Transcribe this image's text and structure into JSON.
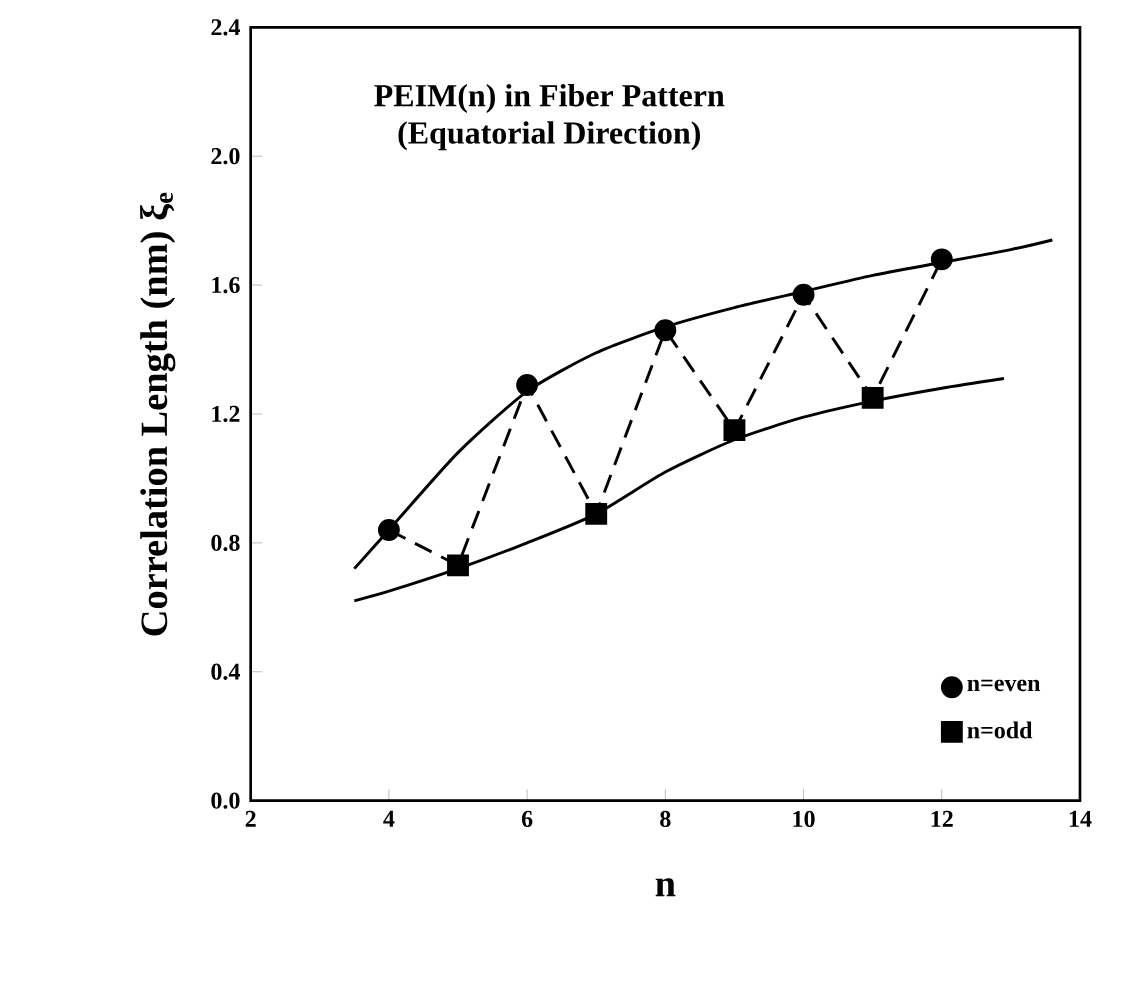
{
  "chart_data": {
    "type": "scatter",
    "title": "PEIM(n) in Fiber Pattern",
    "subtitle": "(Equatorial Direction)",
    "xlabel": "n",
    "ylabel": "Correlation Length (nm)  ξ$_{e}$",
    "xlim": [
      2,
      14
    ],
    "xticks": [
      2,
      4,
      6,
      8,
      10,
      12,
      14
    ],
    "ylim": [
      0,
      2.4
    ],
    "yticks": [
      {
        "value": 0,
        "label": "0.0"
      },
      0.4,
      0.8,
      1.2,
      1.6,
      {
        "value": 2,
        "label": "2.0"
      },
      2.4
    ],
    "legend": "bottom right",
    "grid": false,
    "series": [
      {
        "type": "line",
        "color": "#000000",
        "line_style": "solid",
        "marker": "none",
        "x": [
          3.5,
          4,
          5,
          6,
          7,
          8,
          9,
          10,
          11,
          12,
          13,
          13.6
        ],
        "values": [
          0.72,
          0.84,
          1.08,
          1.27,
          1.39,
          1.47,
          1.53,
          1.58,
          1.63,
          1.67,
          1.71,
          1.74
        ]
      },
      {
        "type": "line",
        "color": "#000000",
        "line_style": "solid",
        "marker": "none",
        "x": [
          3.5,
          4,
          5,
          6,
          7,
          8,
          9,
          10,
          11,
          12,
          12.9
        ],
        "values": [
          0.62,
          0.65,
          0.72,
          0.8,
          0.89,
          1.02,
          1.12,
          1.19,
          1.24,
          1.28,
          1.31
        ]
      },
      {
        "type": "line",
        "color": "#000000",
        "line_style": "dashed",
        "marker": "none",
        "x": [
          4,
          5,
          6,
          7,
          8,
          9,
          10,
          11,
          12
        ],
        "values": [
          0.84,
          0.73,
          1.29,
          0.89,
          1.46,
          1.15,
          1.57,
          1.25,
          1.68
        ]
      },
      {
        "name": "n=even",
        "color": "#000000",
        "marker": "circle",
        "x": [
          4,
          6,
          8,
          10,
          12
        ],
        "values": [
          0.84,
          1.29,
          1.46,
          1.57,
          1.68
        ]
      },
      {
        "name": "n=odd",
        "color": "#000000",
        "marker": "square",
        "x": [
          5,
          7,
          9,
          11
        ],
        "values": [
          0.73,
          0.89,
          1.15,
          1.25
        ]
      }
    ]
  }
}
